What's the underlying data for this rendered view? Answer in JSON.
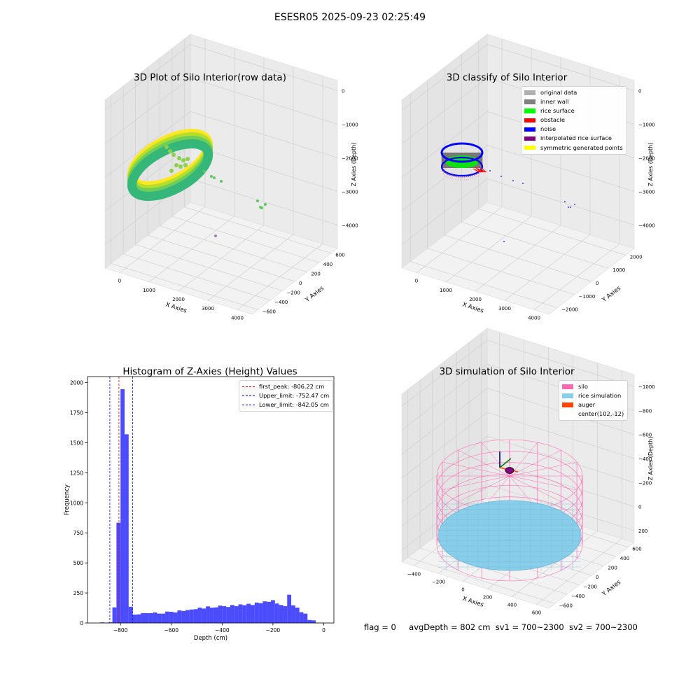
{
  "suptitle": "ESESR05 2025-09-23 02:25:49",
  "footer": {
    "flag": "flag = 0",
    "avg": "avgDepth = 802 cm",
    "sv1": "sv1 = 700~2300",
    "sv2": "sv2 = 700~2300"
  },
  "chart_data": [
    {
      "type": "scatter",
      "projection": "3d",
      "title": "3D Plot of Silo Interior(row data)",
      "xlabel": "X Axies",
      "ylabel": "Y Axies",
      "zlabel": "Z Axies (Depth)",
      "xticks": [
        "0",
        "1000",
        "2000",
        "3000",
        "4000"
      ],
      "yticks": [
        "−600",
        "−400",
        "−200",
        "0",
        "200",
        "400",
        "600"
      ],
      "zticks": [
        "0",
        "−1000",
        "−2000",
        "−3000",
        "−4000"
      ],
      "colormap": "viridis",
      "grid": true
    },
    {
      "type": "scatter",
      "projection": "3d",
      "title": "3D classify of Silo Interior",
      "xlabel": "X Axies",
      "ylabel": "Y Axies",
      "zlabel": "Z Axies (Depth)",
      "xticks": [
        "0",
        "1000",
        "2000",
        "3000",
        "4000"
      ],
      "yticks": [
        "−2000",
        "−1000",
        "0",
        "1000",
        "2000"
      ],
      "zticks": [
        "0",
        "−1000",
        "−2000",
        "−3000",
        "−4000"
      ],
      "legend_position": "top-right",
      "legend": [
        {
          "label": "original data",
          "color": "#b0b0b0"
        },
        {
          "label": "inner wall",
          "color": "#808080"
        },
        {
          "label": "rice surface",
          "color": "#00ff00"
        },
        {
          "label": "obstacle",
          "color": "#ff0000"
        },
        {
          "label": "noise",
          "color": "#0000ff"
        },
        {
          "label": "interpolated rice surface",
          "color": "#800080"
        },
        {
          "label": "symmetric generated points",
          "color": "#ffff00"
        }
      ],
      "grid": true
    },
    {
      "type": "bar",
      "subtype": "histogram",
      "title": "Histogram of Z-Axies (Height) Values",
      "xlabel": "Depth (cm)",
      "ylabel": "Frequency",
      "xlim": [
        -930,
        40
      ],
      "ylim": [
        0,
        2050
      ],
      "xticks": [
        -800,
        -600,
        -400,
        -200,
        0
      ],
      "yticks": [
        0,
        250,
        500,
        750,
        1000,
        1250,
        1500,
        1750,
        2000
      ],
      "bin_width": 16,
      "bin_starts": [
        -880,
        -864,
        -848,
        -832,
        -816,
        -800,
        -784,
        -768,
        -752,
        -736,
        -720,
        -704,
        -688,
        -672,
        -656,
        -640,
        -624,
        -608,
        -592,
        -576,
        -560,
        -544,
        -528,
        -512,
        -496,
        -480,
        -464,
        -448,
        -432,
        -416,
        -400,
        -384,
        -368,
        -352,
        -336,
        -320,
        -304,
        -288,
        -272,
        -256,
        -240,
        -224,
        -208,
        -192,
        -176,
        -160,
        -144,
        -128,
        -112,
        -96,
        -80,
        -64,
        -48,
        -32,
        -16
      ],
      "values": [
        5,
        3,
        5,
        130,
        835,
        1945,
        1570,
        135,
        70,
        72,
        82,
        82,
        82,
        88,
        78,
        78,
        95,
        93,
        88,
        105,
        100,
        108,
        112,
        115,
        128,
        120,
        138,
        128,
        130,
        145,
        140,
        133,
        150,
        140,
        155,
        148,
        160,
        150,
        170,
        165,
        180,
        176,
        190,
        162,
        150,
        140,
        235,
        147,
        128,
        90,
        78,
        25,
        22,
        2,
        2
      ],
      "bar_color": "#0000ff",
      "vlines": [
        {
          "label": "first_peak: -806.22 cm",
          "x": -806.22,
          "color": "#ff0000"
        },
        {
          "label": "Upper_limit: -752.47 cm",
          "x": -752.47,
          "color": "#0000ff"
        },
        {
          "label": "Lower_limit: -842.05 cm",
          "x": -842.05,
          "color": "#0000ff"
        }
      ],
      "legend_position": "top-right"
    },
    {
      "type": "surface",
      "projection": "3d",
      "title": "3D simulation of Silo Interior",
      "xlabel": "X Axies",
      "ylabel": "Y Axies",
      "zlabel": "Z Axies (Depth)",
      "xticks": [
        "−400",
        "−200",
        "0",
        "200",
        "400",
        "600"
      ],
      "yticks": [
        "−600",
        "−400",
        "−200",
        "0",
        "200",
        "400",
        "600"
      ],
      "zticks": [
        "200",
        "0",
        "−200",
        "−400",
        "−600",
        "−800",
        "−1000"
      ],
      "legend_position": "top-right",
      "legend": [
        {
          "label": "silo",
          "color": "#ff69b4"
        },
        {
          "label": "rice simulation",
          "color": "#87ceeb"
        },
        {
          "label": "auger",
          "color": "#ff4500"
        },
        {
          "label": "center(102,-12)",
          "color": ""
        }
      ],
      "grid": true
    }
  ]
}
